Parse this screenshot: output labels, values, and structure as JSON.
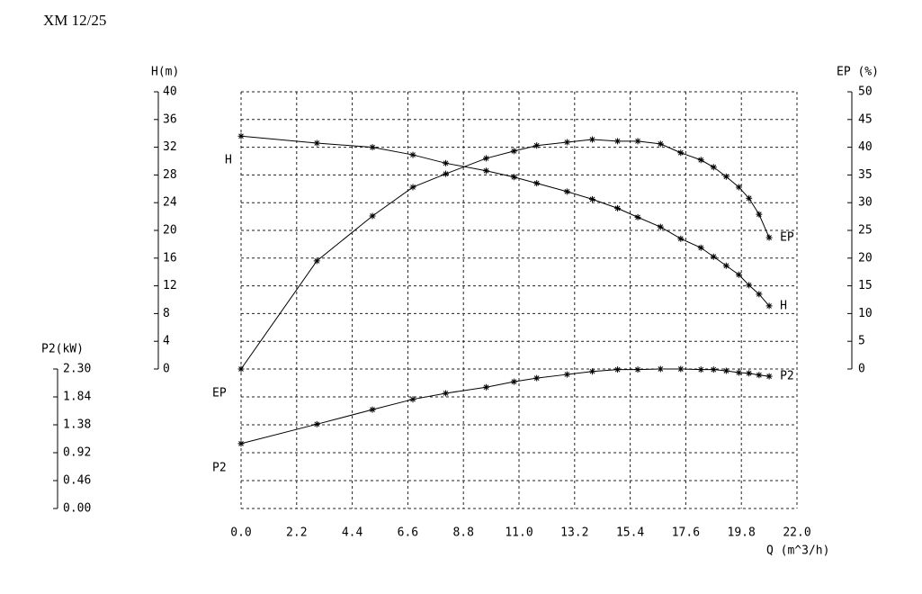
{
  "chart_data": {
    "type": "line",
    "title": "XM 12/25",
    "x_label": "Q (m^3/h)",
    "y_label": "H(m)",
    "y2_label": "EP (%)",
    "y3_label": "P2(kW)",
    "xlim": [
      0,
      22
    ],
    "xticks": [
      {
        "value": 0,
        "label": "0.0"
      },
      2.2,
      4.4,
      6.6,
      8.8,
      {
        "value": 11,
        "label": "11.0"
      },
      13.2,
      15.4,
      17.6,
      19.8,
      {
        "value": 22,
        "label": "22.0"
      }
    ],
    "ylim": [
      0,
      40
    ],
    "yticks": [
      0,
      4,
      8,
      12,
      16,
      20,
      24,
      28,
      32,
      36,
      40
    ],
    "y2lim": [
      0,
      50
    ],
    "y2ticks": [
      0,
      5,
      10,
      15,
      20,
      25,
      30,
      35,
      40,
      45,
      50
    ],
    "y3lim": [
      0,
      2.3
    ],
    "y3ticks": [
      {
        "value": 0,
        "label": "0.00"
      },
      0.46,
      0.92,
      1.38,
      1.84,
      {
        "value": 2.3,
        "label": "2.30"
      }
    ],
    "grid": true,
    "x": [
      0,
      3.0,
      5.2,
      6.8,
      8.1,
      9.7,
      10.8,
      11.7,
      12.9,
      13.9,
      14.9,
      15.7,
      16.6,
      17.4,
      18.2,
      18.7,
      19.2,
      19.7,
      20.1,
      20.5,
      20.9
    ],
    "series": [
      {
        "name": "H",
        "color": "#000000",
        "axis": "y",
        "values": [
          33.6,
          32.6,
          32.0,
          30.9,
          29.7,
          28.6,
          27.7,
          26.8,
          25.6,
          24.5,
          23.2,
          21.9,
          20.5,
          18.8,
          17.5,
          16.2,
          14.9,
          13.6,
          12.1,
          10.8,
          9.1
        ]
      },
      {
        "name": "EP",
        "color": "#000000",
        "axis": "y2",
        "values": [
          0,
          19.5,
          27.6,
          32.8,
          35.2,
          38.0,
          39.3,
          40.3,
          40.9,
          41.4,
          41.1,
          41.1,
          40.6,
          39.0,
          37.7,
          36.4,
          34.7,
          32.8,
          30.8,
          27.9,
          23.7
        ]
      },
      {
        "name": "P2",
        "color": "#000000",
        "axis": "y3",
        "values": [
          1.07,
          1.39,
          1.63,
          1.8,
          1.9,
          2.0,
          2.09,
          2.15,
          2.21,
          2.26,
          2.29,
          2.29,
          2.3,
          2.3,
          2.29,
          2.29,
          2.27,
          2.24,
          2.23,
          2.2,
          2.18
        ]
      }
    ]
  }
}
